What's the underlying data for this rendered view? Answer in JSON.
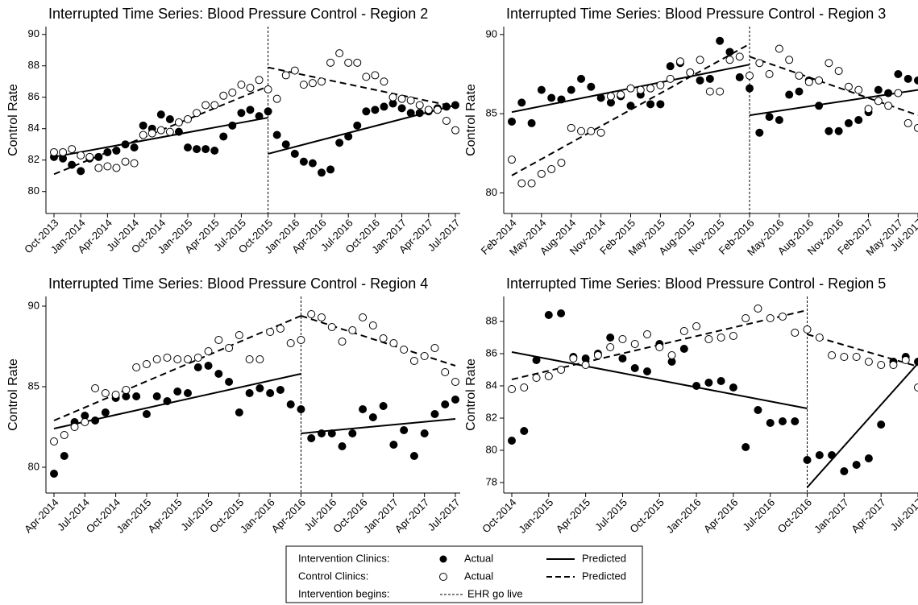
{
  "chart_data": [
    {
      "type": "scatter",
      "title": "Interrupted Time Series: Blood Pressure Control - Region 2",
      "y_label": "Control Rate",
      "categories": [
        "Oct-2013",
        null,
        null,
        "Jan-2014",
        null,
        null,
        "Apr-2014",
        null,
        null,
        "Jul-2014",
        null,
        null,
        "Oct-2014",
        null,
        null,
        "Jan-2015",
        null,
        null,
        "Apr-2015",
        null,
        null,
        "Jul-2015",
        null,
        null,
        "Oct-2015",
        null,
        null,
        "Jan-2016",
        null,
        null,
        "Apr-2016",
        null,
        null,
        "Jul-2016",
        null,
        null,
        "Oct-2016",
        null,
        null,
        "Jan-2017",
        null,
        null,
        "Apr-2017",
        null,
        null,
        "Jul-2017"
      ],
      "ylim": [
        78.6,
        90.5
      ],
      "yticks": [
        80,
        82,
        84,
        86,
        88,
        90
      ],
      "intervention_start": "Oct-2015",
      "series": [
        {
          "color": "#000000",
          "marker": "filled",
          "line": "solid",
          "values": [
            82.2,
            82.1,
            81.7,
            81.3,
            82.1,
            82.2,
            82.5,
            82.6,
            83.0,
            82.8,
            84.2,
            84.0,
            84.9,
            84.6,
            83.8,
            82.8,
            82.7,
            82.7,
            82.6,
            83.5,
            84.2,
            85.0,
            85.2,
            84.8,
            85.1,
            83.6,
            83.0,
            82.4,
            81.9,
            81.8,
            81.2,
            81.4,
            83.1,
            83.5,
            84.2,
            85.1,
            85.2,
            85.4,
            85.6,
            85.3,
            85.0,
            85.0,
            85.1,
            85.3,
            85.4,
            85.5
          ],
          "predicted": [
            {
              "x": [
                "Oct-2013",
                "Oct-2015"
              ],
              "values": [
                82.2,
                84.7
              ]
            },
            {
              "x": [
                "Oct-2015",
                "Jul-2017"
              ],
              "values": [
                82.4,
                85.5
              ]
            }
          ]
        },
        {
          "color": "#000000",
          "marker": "hollow",
          "line": "dashed",
          "values": [
            82.5,
            82.5,
            82.7,
            82.3,
            82.2,
            81.5,
            81.6,
            81.5,
            81.9,
            81.8,
            83.6,
            83.7,
            83.9,
            83.8,
            84.4,
            84.6,
            85.0,
            85.5,
            85.5,
            86.1,
            86.3,
            86.8,
            86.6,
            87.1,
            86.5,
            85.9,
            87.4,
            87.7,
            86.8,
            86.9,
            87.0,
            88.2,
            88.8,
            88.2,
            88.2,
            87.3,
            87.4,
            87.0,
            86.0,
            85.9,
            85.8,
            85.5,
            85.2,
            85.2,
            84.5,
            83.9
          ],
          "predicted": [
            {
              "x": [
                "Oct-2013",
                "Oct-2015"
              ],
              "values": [
                81.1,
                86.7
              ]
            },
            {
              "x": [
                "Oct-2015",
                "Jul-2017"
              ],
              "values": [
                87.9,
                85.4
              ]
            }
          ]
        }
      ]
    },
    {
      "type": "scatter",
      "title": "Interrupted Time Series: Blood Pressure Control - Region 3",
      "y_label": "Control Rate",
      "categories": [
        "Feb-2014",
        null,
        null,
        "May-2014",
        null,
        null,
        "Aug-2014",
        null,
        null,
        "Nov-2014",
        null,
        null,
        "Feb-2015",
        null,
        null,
        "May-2015",
        null,
        null,
        "Aug-2015",
        null,
        null,
        "Nov-2015",
        null,
        null,
        "Feb-2016",
        null,
        null,
        "May-2016",
        null,
        null,
        "Aug-2016",
        null,
        null,
        "Nov-2016",
        null,
        null,
        "Feb-2017",
        null,
        null,
        "May-2017",
        null,
        "Jul-2017"
      ],
      "ylim": [
        78.7,
        90.5
      ],
      "yticks": [
        80,
        85,
        90
      ],
      "intervention_start": "Feb-2016",
      "series": [
        {
          "color": "#000000",
          "marker": "filled",
          "line": "solid",
          "values": [
            84.5,
            85.7,
            84.4,
            86.5,
            86.0,
            85.9,
            86.5,
            87.2,
            86.7,
            86.0,
            85.7,
            86.1,
            85.5,
            86.2,
            85.6,
            85.6,
            88.0,
            88.2,
            87.6,
            87.1,
            87.2,
            89.6,
            88.9,
            87.3,
            86.6,
            83.8,
            84.8,
            84.6,
            86.2,
            86.4,
            87.1,
            85.5,
            83.9,
            83.9,
            84.4,
            84.6,
            85.1,
            86.5,
            86.3,
            87.5,
            87.2,
            87.1
          ],
          "predicted": [
            {
              "x": [
                "Feb-2014",
                "Feb-2016"
              ],
              "values": [
                85.1,
                88.1
              ]
            },
            {
              "x": [
                "Feb-2016",
                "Jul-2017"
              ],
              "values": [
                84.9,
                86.5
              ]
            }
          ]
        },
        {
          "color": "#000000",
          "marker": "hollow",
          "line": "dashed",
          "values": [
            82.1,
            80.6,
            80.6,
            81.2,
            81.5,
            81.9,
            84.1,
            83.9,
            83.9,
            83.8,
            86.1,
            86.2,
            86.6,
            86.5,
            86.6,
            86.8,
            87.2,
            88.3,
            87.6,
            88.4,
            86.4,
            86.4,
            88.4,
            88.6,
            87.4,
            88.2,
            87.5,
            89.1,
            88.4,
            87.4,
            87.0,
            87.1,
            88.2,
            87.7,
            86.7,
            86.5,
            85.3,
            85.8,
            85.5,
            86.3,
            84.4,
            84.1
          ],
          "predicted": [
            {
              "x": [
                "Feb-2014",
                "Feb-2016"
              ],
              "values": [
                81.1,
                89.4
              ]
            },
            {
              "x": [
                "Feb-2016",
                "Jul-2017"
              ],
              "values": [
                88.6,
                84.9
              ]
            }
          ]
        }
      ]
    },
    {
      "type": "scatter",
      "title": "Interrupted Time Series: Blood Pressure Control - Region 4",
      "y_label": "Control Rate",
      "categories": [
        "Apr-2014",
        null,
        null,
        "Jul-2014",
        null,
        null,
        "Oct-2014",
        null,
        null,
        "Jan-2015",
        null,
        null,
        "Apr-2015",
        null,
        null,
        "Jul-2015",
        null,
        null,
        "Oct-2015",
        null,
        null,
        "Jan-2016",
        null,
        null,
        "Apr-2016",
        null,
        null,
        "Jul-2016",
        null,
        null,
        "Oct-2016",
        null,
        null,
        "Jan-2017",
        null,
        null,
        "Apr-2017",
        null,
        null,
        "Jul-2017"
      ],
      "ylim": [
        78.4,
        90.6
      ],
      "yticks": [
        80,
        85,
        90
      ],
      "intervention_start": "Apr-2016",
      "series": [
        {
          "color": "#000000",
          "marker": "filled",
          "line": "solid",
          "values": [
            79.6,
            80.7,
            82.8,
            83.2,
            82.9,
            83.4,
            84.3,
            84.4,
            84.4,
            83.3,
            84.4,
            84.1,
            84.7,
            84.6,
            86.2,
            86.3,
            85.8,
            85.3,
            83.4,
            84.6,
            84.9,
            84.6,
            84.8,
            83.9,
            83.6,
            81.8,
            82.1,
            82.1,
            81.3,
            82.1,
            83.6,
            83.1,
            83.8,
            81.4,
            82.3,
            80.7,
            82.1,
            83.3,
            83.9,
            84.2
          ],
          "predicted": [
            {
              "x": [
                "Apr-2014",
                "Apr-2016"
              ],
              "values": [
                82.4,
                85.8
              ]
            },
            {
              "x": [
                "Apr-2016",
                "Jul-2017"
              ],
              "values": [
                82.1,
                83.0
              ]
            }
          ]
        },
        {
          "color": "#000000",
          "marker": "hollow",
          "line": "dashed",
          "values": [
            81.6,
            82.0,
            82.5,
            82.8,
            84.9,
            84.6,
            84.5,
            84.8,
            86.2,
            86.4,
            86.7,
            86.8,
            86.7,
            86.7,
            86.8,
            87.2,
            87.9,
            87.4,
            88.2,
            86.7,
            86.7,
            88.4,
            88.6,
            87.7,
            87.9,
            89.5,
            89.3,
            88.7,
            87.8,
            88.5,
            89.3,
            88.8,
            88.0,
            87.7,
            87.3,
            86.6,
            86.9,
            87.4,
            85.9,
            85.3
          ],
          "predicted": [
            {
              "x": [
                "Apr-2014",
                "Apr-2016"
              ],
              "values": [
                82.9,
                89.4
              ]
            },
            {
              "x": [
                "Apr-2016",
                "Jul-2017"
              ],
              "values": [
                89.4,
                86.3
              ]
            }
          ]
        }
      ]
    },
    {
      "type": "scatter",
      "title": "Interrupted Time Series: Blood Pressure Control - Region 5",
      "y_label": "Control Rate",
      "categories": [
        "Oct-2014",
        null,
        null,
        "Jan-2015",
        null,
        null,
        "Apr-2015",
        null,
        null,
        "Jul-2015",
        null,
        null,
        "Oct-2015",
        null,
        null,
        "Jan-2016",
        null,
        null,
        "Apr-2016",
        null,
        null,
        "Jul-2016",
        null,
        null,
        "Oct-2016",
        null,
        null,
        "Jan-2017",
        null,
        null,
        "Apr-2017",
        null,
        null,
        "Jul-2017"
      ],
      "ylim": [
        77.35,
        89.55
      ],
      "yticks": [
        78,
        80,
        82,
        84,
        86,
        88
      ],
      "intervention_start": "Oct-2016",
      "series": [
        {
          "color": "#000000",
          "marker": "filled",
          "line": "solid",
          "values": [
            80.6,
            81.2,
            85.6,
            88.4,
            88.5,
            85.8,
            85.7,
            86.0,
            87.0,
            85.7,
            85.1,
            84.9,
            86.6,
            85.5,
            86.3,
            84.0,
            84.2,
            84.3,
            83.9,
            80.2,
            82.5,
            81.7,
            81.8,
            81.8,
            79.4,
            79.7,
            79.7,
            78.7,
            79.1,
            79.5,
            81.6,
            85.5,
            85.8,
            85.5
          ],
          "predicted": [
            {
              "x": [
                "Oct-2014",
                "Oct-2016"
              ],
              "values": [
                86.1,
                82.6
              ]
            },
            {
              "x": [
                "Oct-2016",
                "Jul-2017"
              ],
              "values": [
                77.7,
                85.4
              ]
            }
          ]
        },
        {
          "color": "#000000",
          "marker": "hollow",
          "line": "dashed",
          "values": [
            83.8,
            83.9,
            84.5,
            84.6,
            85.0,
            85.7,
            85.3,
            85.9,
            86.4,
            86.9,
            86.6,
            87.2,
            86.4,
            85.9,
            87.4,
            87.7,
            86.9,
            87.0,
            87.1,
            88.2,
            88.8,
            88.2,
            88.3,
            87.3,
            87.5,
            87.0,
            85.9,
            85.8,
            85.8,
            85.5,
            85.3,
            85.3,
            85.6,
            83.9
          ],
          "predicted": [
            {
              "x": [
                "Oct-2014",
                "Oct-2016"
              ],
              "values": [
                84.4,
                88.7
              ]
            },
            {
              "x": [
                "Oct-2016",
                "Jul-2017"
              ],
              "values": [
                87.2,
                85.2
              ]
            }
          ]
        }
      ]
    }
  ],
  "legend": {
    "rows": [
      {
        "label": "Intervention Clinics:",
        "actual": "Actual",
        "predicted": "Predicted"
      },
      {
        "label": "Control Clinics:",
        "actual": "Actual",
        "predicted": "Predicted"
      },
      {
        "label": "Intervention begins:",
        "line": "EHR go live"
      }
    ]
  }
}
